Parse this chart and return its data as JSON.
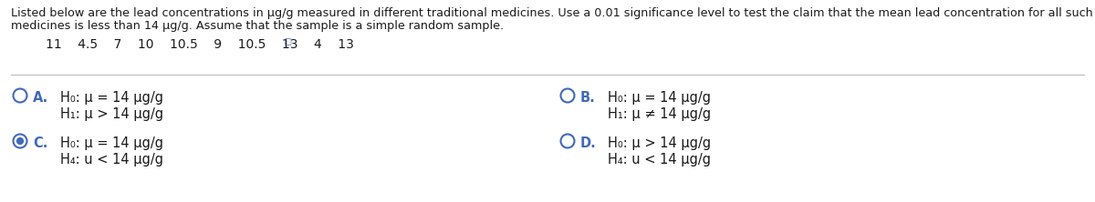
{
  "bg_color": "#ffffff",
  "text_color": "#1a1a1a",
  "blue_color": "#4169b8",
  "header_line1": "Listed below are the lead concentrations in μg/g measured in different traditional medicines. Use a 0.01 significance level to test the claim that the mean lead concentration for all such",
  "header_line2": "medicines is less than 14 μg/g. Assume that the sample is a simple random sample.",
  "data_values": "11    4.5    7    10    10.5    9    10.5    13    4    13",
  "option_A_label": "A.",
  "option_A_H0": "H₀: μ = 14 μg/g",
  "option_A_H1": "H₁: μ > 14 μg/g",
  "option_A_selected": false,
  "option_B_label": "B.",
  "option_B_H0": "H₀: μ = 14 μg/g",
  "option_B_H1": "H₁: μ ≠ 14 μg/g",
  "option_B_selected": false,
  "option_C_label": "C.",
  "option_C_H0": "H₀: μ = 14 μg/g",
  "option_C_H1": "H₄: u < 14 μg/g",
  "option_C_selected": true,
  "option_D_label": "D.",
  "option_D_H0": "H₀: μ > 14 μg/g",
  "option_D_H1": "H₄: u < 14 μg/g",
  "option_D_selected": false,
  "header_fontsize": 9.2,
  "data_fontsize": 10.0,
  "option_label_fontsize": 10.5,
  "option_text_fontsize": 10.5
}
